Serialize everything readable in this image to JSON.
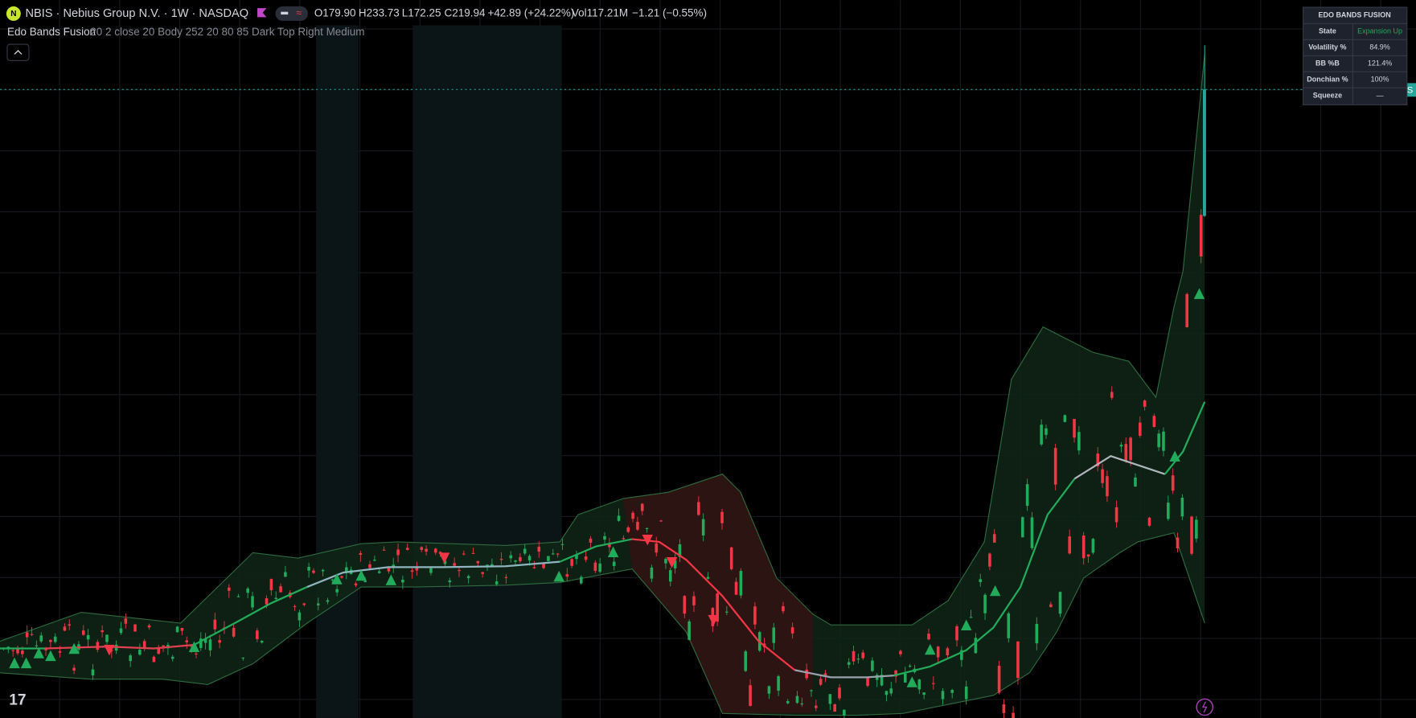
{
  "header": {
    "symbol": "NBIS · Nebius Group N.V. · 1W · NASDAQ",
    "open": "O179.90",
    "high": "H233.73",
    "low": "L172.25",
    "close": "C219.94",
    "change": "+42.89 (+24.22%)",
    "volume": "Vol117.21M",
    "volume_change": "−1.21 (−0.55%)"
  },
  "indicator": {
    "name": "Edo Bands Fusion",
    "params": "20 2 close 20 Body 252 20 80 85 Dark Top Right Medium"
  },
  "table": {
    "title": "EDO BANDS FUSION",
    "rows": [
      [
        "State",
        "Expansion Up"
      ],
      [
        "Volatility %",
        "84.9%"
      ],
      [
        "BB %B",
        "121.4%"
      ],
      [
        "Donchian %",
        "100%"
      ],
      [
        "Squeeze",
        "—"
      ]
    ]
  },
  "price_label": "NBIS"
}
